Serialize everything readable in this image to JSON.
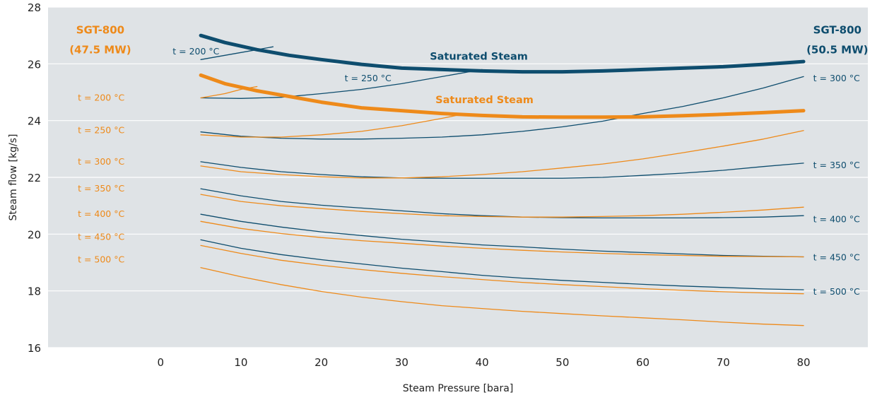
{
  "chart_data": {
    "type": "line",
    "xlabel": "Steam Pressure [bara]",
    "ylabel": "Steam flow [kg/s]",
    "xlim": [
      -14,
      88
    ],
    "ylim": [
      16,
      28
    ],
    "xticks": [
      0,
      10,
      20,
      30,
      40,
      50,
      60,
      70,
      80
    ],
    "yticks": [
      16,
      18,
      20,
      22,
      24,
      26,
      28
    ],
    "grid": "horizontal",
    "colors": {
      "navy": "#0e4d6e",
      "orange": "#ee8a1a",
      "background": "#dfe3e6"
    },
    "series": [
      {
        "name": "SGT-800 (50.5 MW) Saturated Steam",
        "group": "navy",
        "heavy": true,
        "x": [
          5,
          8,
          12,
          16,
          20,
          25,
          30,
          35,
          40,
          45,
          50,
          55,
          60,
          65,
          70,
          75,
          80
        ],
        "y": [
          27.0,
          26.75,
          26.5,
          26.3,
          26.15,
          25.98,
          25.85,
          25.8,
          25.75,
          25.72,
          25.72,
          25.75,
          25.8,
          25.85,
          25.9,
          25.98,
          26.08
        ]
      },
      {
        "name": "t = 200 °C",
        "group": "navy",
        "x": [
          5,
          8,
          12,
          14
        ],
        "y": [
          26.15,
          26.3,
          26.5,
          26.6
        ]
      },
      {
        "name": "t = 250 °C",
        "group": "navy",
        "x": [
          5,
          10,
          15,
          20,
          25,
          30,
          35,
          40
        ],
        "y": [
          24.8,
          24.78,
          24.82,
          24.95,
          25.1,
          25.3,
          25.55,
          25.8
        ]
      },
      {
        "name": "t = 300 °C",
        "group": "navy",
        "x": [
          5,
          10,
          15,
          20,
          25,
          30,
          35,
          40,
          45,
          50,
          55,
          60,
          65,
          70,
          75,
          80
        ],
        "y": [
          23.6,
          23.45,
          23.38,
          23.35,
          23.35,
          23.38,
          23.42,
          23.5,
          23.62,
          23.78,
          23.98,
          24.25,
          24.5,
          24.8,
          25.15,
          25.55
        ]
      },
      {
        "name": "t = 350 °C",
        "group": "navy",
        "x": [
          5,
          10,
          15,
          20,
          25,
          30,
          35,
          40,
          45,
          50,
          55,
          60,
          65,
          70,
          75,
          80
        ],
        "y": [
          22.55,
          22.35,
          22.2,
          22.1,
          22.02,
          21.98,
          21.97,
          21.97,
          21.97,
          21.97,
          22.0,
          22.07,
          22.15,
          22.25,
          22.38,
          22.5
        ]
      },
      {
        "name": "t = 400 °C",
        "group": "navy",
        "x": [
          5,
          10,
          15,
          20,
          25,
          30,
          35,
          40,
          45,
          50,
          55,
          60,
          65,
          70,
          75,
          80
        ],
        "y": [
          21.6,
          21.35,
          21.15,
          21.02,
          20.92,
          20.82,
          20.72,
          20.65,
          20.6,
          20.58,
          20.57,
          20.57,
          20.57,
          20.58,
          20.6,
          20.65
        ]
      },
      {
        "name": "t = 450 °C",
        "group": "navy",
        "x": [
          5,
          10,
          15,
          20,
          25,
          30,
          35,
          40,
          45,
          50,
          55,
          60,
          65,
          70,
          75,
          80
        ],
        "y": [
          20.7,
          20.45,
          20.25,
          20.08,
          19.95,
          19.82,
          19.72,
          19.62,
          19.55,
          19.47,
          19.4,
          19.35,
          19.3,
          19.25,
          19.22,
          19.2
        ]
      },
      {
        "name": "t = 500 °C",
        "group": "navy",
        "x": [
          5,
          10,
          15,
          20,
          25,
          30,
          35,
          40,
          45,
          50,
          55,
          60,
          65,
          70,
          75,
          80
        ],
        "y": [
          19.8,
          19.5,
          19.28,
          19.1,
          18.95,
          18.8,
          18.68,
          18.55,
          18.45,
          18.37,
          18.3,
          18.23,
          18.17,
          18.12,
          18.07,
          18.04
        ]
      },
      {
        "name": "SGT-800 (47.5 MW) Saturated Steam",
        "group": "orange",
        "heavy": true,
        "x": [
          5,
          8,
          12,
          16,
          20,
          25,
          30,
          35,
          40,
          45,
          50,
          55,
          60,
          65,
          70,
          75,
          80
        ],
        "y": [
          25.6,
          25.3,
          25.05,
          24.85,
          24.65,
          24.45,
          24.35,
          24.25,
          24.18,
          24.13,
          24.12,
          24.12,
          24.13,
          24.17,
          24.22,
          24.28,
          24.35
        ]
      },
      {
        "name": "t = 200 °C",
        "group": "orange",
        "x": [
          5,
          8,
          10,
          12
        ],
        "y": [
          24.8,
          24.95,
          25.1,
          25.2
        ]
      },
      {
        "name": "t = 250 °C",
        "group": "orange",
        "x": [
          5,
          10,
          15,
          20,
          25,
          30,
          35,
          38
        ],
        "y": [
          23.5,
          23.42,
          23.42,
          23.5,
          23.62,
          23.82,
          24.08,
          24.25
        ]
      },
      {
        "name": "t = 300 °C",
        "group": "orange",
        "x": [
          5,
          10,
          15,
          20,
          25,
          30,
          35,
          40,
          45,
          50,
          55,
          60,
          65,
          70,
          75,
          80
        ],
        "y": [
          22.4,
          22.2,
          22.1,
          22.02,
          21.98,
          21.98,
          22.02,
          22.1,
          22.2,
          22.33,
          22.47,
          22.65,
          22.87,
          23.1,
          23.35,
          23.65
        ]
      },
      {
        "name": "t = 350 °C",
        "group": "orange",
        "x": [
          5,
          10,
          15,
          20,
          25,
          30,
          35,
          40,
          45,
          50,
          55,
          60,
          65,
          70,
          75,
          80
        ],
        "y": [
          21.4,
          21.15,
          21.0,
          20.9,
          20.8,
          20.72,
          20.65,
          20.62,
          20.6,
          20.6,
          20.62,
          20.65,
          20.7,
          20.77,
          20.85,
          20.95
        ]
      },
      {
        "name": "t = 400 °C",
        "group": "orange",
        "x": [
          5,
          10,
          15,
          20,
          25,
          30,
          35,
          40,
          45,
          50,
          55,
          60,
          65,
          70,
          75,
          80
        ],
        "y": [
          20.45,
          20.2,
          20.02,
          19.88,
          19.77,
          19.68,
          19.58,
          19.5,
          19.43,
          19.37,
          19.32,
          19.28,
          19.25,
          19.22,
          19.21,
          19.2
        ]
      },
      {
        "name": "t = 450 °C",
        "group": "orange",
        "x": [
          5,
          10,
          15,
          20,
          25,
          30,
          35,
          40,
          45,
          50,
          55,
          60,
          65,
          70,
          75,
          80
        ],
        "y": [
          19.6,
          19.32,
          19.08,
          18.9,
          18.75,
          18.62,
          18.5,
          18.4,
          18.3,
          18.22,
          18.15,
          18.08,
          18.02,
          17.97,
          17.93,
          17.9
        ]
      },
      {
        "name": "t = 500 °C",
        "group": "orange",
        "x": [
          5,
          10,
          15,
          20,
          25,
          30,
          35,
          40,
          45,
          50,
          55,
          60,
          65,
          70,
          75,
          80
        ],
        "y": [
          18.82,
          18.5,
          18.22,
          17.98,
          17.78,
          17.62,
          17.48,
          17.38,
          17.28,
          17.2,
          17.12,
          17.05,
          16.98,
          16.9,
          16.83,
          16.78
        ]
      }
    ],
    "annotations": [
      {
        "text": "SGT-800",
        "color": "#ee8a1a",
        "bold": true,
        "size": 15,
        "x": -7.5,
        "y": 27.07,
        "anchor": "middle"
      },
      {
        "text": "(47.5 MW)",
        "color": "#ee8a1a",
        "bold": true,
        "size": 15,
        "x": -7.5,
        "y": 26.37,
        "anchor": "middle"
      },
      {
        "text": "SGT-800",
        "color": "#0e4d6e",
        "bold": true,
        "size": 15,
        "x": 84.2,
        "y": 27.07,
        "anchor": "middle"
      },
      {
        "text": "(50.5 MW)",
        "color": "#0e4d6e",
        "bold": true,
        "size": 15,
        "x": 84.2,
        "y": 26.37,
        "anchor": "middle"
      },
      {
        "text": "Saturated Steam",
        "color": "#0e4d6e",
        "bold": true,
        "size": 14.5,
        "x": 33.5,
        "y": 26.15,
        "anchor": "start"
      },
      {
        "text": "Saturated Steam",
        "color": "#ee8a1a",
        "bold": true,
        "size": 14.5,
        "x": 34.2,
        "y": 24.62,
        "anchor": "start"
      },
      {
        "text": "t = 200 °C",
        "color": "#0e4d6e",
        "size": 12.5,
        "x": 1.5,
        "y": 26.33,
        "anchor": "start"
      },
      {
        "text": "t = 250 °C",
        "color": "#0e4d6e",
        "size": 12.5,
        "x": 22.9,
        "y": 25.38,
        "anchor": "start"
      },
      {
        "text": "t = 300 °C",
        "color": "#0e4d6e",
        "size": 12.5,
        "x": 81.2,
        "y": 25.38,
        "anchor": "start"
      },
      {
        "text": "t = 350 °C",
        "color": "#0e4d6e",
        "size": 12.5,
        "x": 81.2,
        "y": 22.32,
        "anchor": "start"
      },
      {
        "text": "t = 400 °C",
        "color": "#0e4d6e",
        "size": 12.5,
        "x": 81.2,
        "y": 20.42,
        "anchor": "start"
      },
      {
        "text": "t = 450 °C",
        "color": "#0e4d6e",
        "size": 12.5,
        "x": 81.2,
        "y": 19.07,
        "anchor": "start"
      },
      {
        "text": "t = 500 °C",
        "color": "#0e4d6e",
        "size": 12.5,
        "x": 81.2,
        "y": 17.87,
        "anchor": "start"
      },
      {
        "text": "t = 200 °C",
        "color": "#ee8a1a",
        "size": 12.5,
        "x": -10.3,
        "y": 24.7,
        "anchor": "start"
      },
      {
        "text": "t = 250 °C",
        "color": "#ee8a1a",
        "size": 12.5,
        "x": -10.3,
        "y": 23.55,
        "anchor": "start"
      },
      {
        "text": "t = 300 °C",
        "color": "#ee8a1a",
        "size": 12.5,
        "x": -10.3,
        "y": 22.45,
        "anchor": "start"
      },
      {
        "text": "t = 350 °C",
        "color": "#ee8a1a",
        "size": 12.5,
        "x": -10.3,
        "y": 21.5,
        "anchor": "start"
      },
      {
        "text": "t = 400 °C",
        "color": "#ee8a1a",
        "size": 12.5,
        "x": -10.3,
        "y": 20.6,
        "anchor": "start"
      },
      {
        "text": "t = 450 °C",
        "color": "#ee8a1a",
        "size": 12.5,
        "x": -10.3,
        "y": 19.8,
        "anchor": "start"
      },
      {
        "text": "t = 500 °C",
        "color": "#ee8a1a",
        "size": 12.5,
        "x": -10.3,
        "y": 19.0,
        "anchor": "start"
      }
    ]
  }
}
